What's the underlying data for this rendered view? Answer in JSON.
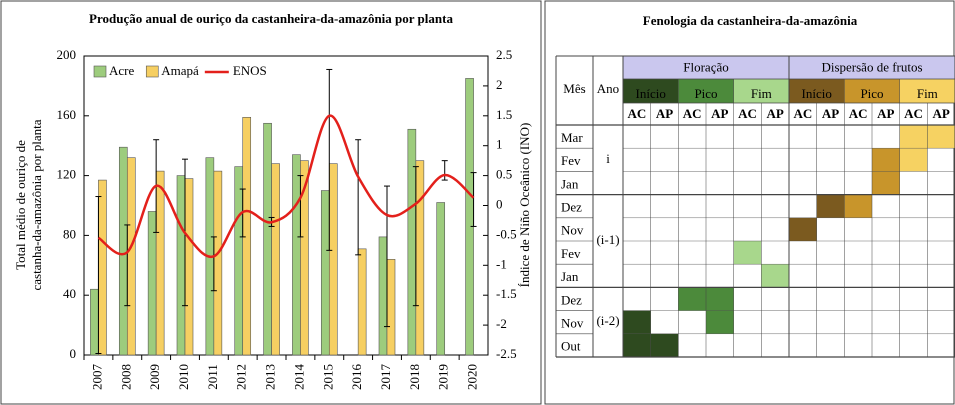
{
  "chart_data": {
    "type": "bar",
    "title": "Produção anual de ouriço da castanheira-da-amazônia por planta",
    "ylabel": [
      "Total médio de ouriço de",
      "castanha-da-amazônia por planta"
    ],
    "y2label": "Índice de Niño Oceânico (INO)",
    "categories": [
      "2007",
      "2008",
      "2009",
      "2010",
      "2011",
      "2012",
      "2013",
      "2014",
      "2015",
      "2016",
      "2017",
      "2018",
      "2019",
      "2020"
    ],
    "series": [
      {
        "name": "Acre",
        "type": "bar",
        "color": "#9dcc7d",
        "values": [
          44,
          139,
          96,
          120,
          132,
          126,
          155,
          134,
          110,
          null,
          79,
          151,
          102,
          185
        ]
      },
      {
        "name": "Amapá",
        "type": "bar",
        "color": "#f6cf62",
        "values": [
          117,
          132,
          123,
          118,
          123,
          159,
          128,
          130,
          128,
          71,
          64,
          130,
          null,
          null
        ]
      },
      {
        "name": "ENOS",
        "type": "line",
        "axis": "y2",
        "color": "#e3201b",
        "values": [
          -0.54,
          -0.78,
          0.33,
          -0.46,
          -0.85,
          -0.11,
          -0.28,
          0.13,
          1.5,
          0.48,
          -0.16,
          0.03,
          0.51,
          0.13
        ]
      }
    ],
    "error_low": [
      1,
      33,
      82,
      33,
      43,
      79,
      86,
      79,
      70,
      67,
      19,
      33,
      117,
      86
    ],
    "error_high": [
      106,
      87,
      144,
      131,
      79,
      111,
      92,
      120,
      191,
      144,
      113,
      126,
      130,
      122
    ],
    "ylim": [
      0,
      200
    ],
    "yticks": [
      0,
      40,
      80,
      120,
      160,
      200
    ],
    "y2lim": [
      -2.5,
      2.5
    ],
    "y2ticks": [
      -2.5,
      -2,
      -1.5,
      -1,
      -0.5,
      0,
      0.5,
      1,
      1.5,
      2,
      2.5
    ],
    "legend": "upper left"
  },
  "phenology": {
    "title": "Fenologia da castanheira-da-amazônia",
    "month_header": "Mês",
    "year_header": "Ano",
    "groups": [
      {
        "name": "Floração",
        "color": "#cac7ee",
        "phases": [
          {
            "name": "Início",
            "color": "#2e4a1f"
          },
          {
            "name": "Pico",
            "color": "#4c8a3b"
          },
          {
            "name": "Fim",
            "color": "#a8d78c"
          }
        ]
      },
      {
        "name": "Dispersão de frutos",
        "color": "#cac7ee",
        "phases": [
          {
            "name": "Início",
            "color": "#7b5a1f"
          },
          {
            "name": "Pico",
            "color": "#c8952b"
          },
          {
            "name": "Fim",
            "color": "#f6d262"
          }
        ]
      }
    ],
    "sites": [
      "AC",
      "AP"
    ],
    "year_groups": [
      {
        "label": "i",
        "months": [
          "Mar",
          "Fev",
          "Jan"
        ]
      },
      {
        "label": "(i-1)",
        "months": [
          "Dez",
          "Nov",
          "Fev",
          "Jan"
        ]
      },
      {
        "label": "(i-2)",
        "months": [
          "Dez",
          "Nov",
          "Out"
        ]
      }
    ]
  }
}
